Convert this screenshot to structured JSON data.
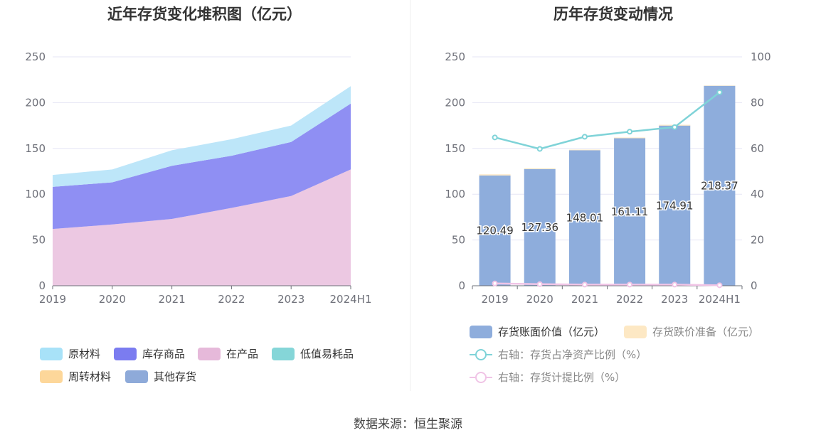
{
  "left": {
    "title": "近年存货变化堆积图（亿元）",
    "chart_data": {
      "type": "area",
      "categories": [
        "2019",
        "2020",
        "2021",
        "2022",
        "2023",
        "2024H1"
      ],
      "y_ticks": [
        "0",
        "50",
        "100",
        "150",
        "200",
        "250"
      ],
      "ylim": [
        0,
        250
      ],
      "grid": true,
      "series": [
        {
          "name": "在产品",
          "color": "#ecc8e2",
          "values": [
            62,
            67,
            73,
            85,
            98,
            127
          ]
        },
        {
          "name": "库存商品",
          "color": "#8f8ff3",
          "values": [
            46,
            46,
            58,
            57,
            59,
            72
          ]
        },
        {
          "name": "原材料",
          "color": "#bde6f9",
          "values": [
            13,
            14,
            17,
            18,
            18,
            19
          ]
        }
      ]
    },
    "legend": [
      {
        "label": "原材料",
        "color": "#a8e2f8"
      },
      {
        "label": "库存商品",
        "color": "#7b7cf0"
      },
      {
        "label": "在产品",
        "color": "#e6b9da"
      },
      {
        "label": "低值易耗品",
        "color": "#85d6d8"
      },
      {
        "label": "周转材料",
        "color": "#fdd79a"
      },
      {
        "label": "其他存货",
        "color": "#8eaad9"
      }
    ]
  },
  "right": {
    "title": "历年存货变动情况",
    "chart_data": {
      "type": "bar",
      "categories": [
        "2019",
        "2020",
        "2021",
        "2022",
        "2023",
        "2024H1"
      ],
      "y_ticks_left": [
        "0",
        "50",
        "100",
        "150",
        "200",
        "250"
      ],
      "y_ticks_right": [
        "0",
        "20",
        "40",
        "60",
        "80",
        "100"
      ],
      "ylim_left": [
        0,
        250
      ],
      "ylim_right": [
        0,
        100
      ],
      "series": [
        {
          "name": "存货账面价值（亿元）",
          "axis": "left",
          "type": "bar",
          "color": "#8eaddc",
          "values": [
            120.49,
            127.36,
            148.01,
            161.11,
            174.91,
            218.37
          ],
          "labels": [
            "120.49",
            "127.36",
            "148.01",
            "161.11",
            "174.91",
            "218.37"
          ]
        },
        {
          "name": "存货跌价准备（亿元）",
          "axis": "left",
          "type": "bar",
          "color": "#fde8c4",
          "values": [
            1.2,
            0.9,
            0.7,
            0.8,
            0.9,
            0.4
          ]
        },
        {
          "name": "右轴：存货占净资产比例（%）",
          "axis": "right",
          "type": "line",
          "color": "#7fd3d8",
          "values": [
            64.8,
            59.8,
            65.1,
            67.3,
            69.3,
            84.5
          ]
        },
        {
          "name": "右轴：存货计提比例（%）",
          "axis": "right",
          "type": "line",
          "color": "#f0c4e6",
          "values": [
            1.0,
            0.7,
            0.5,
            0.5,
            0.5,
            0.2
          ]
        }
      ]
    }
  },
  "source": "数据来源：恒生聚源"
}
